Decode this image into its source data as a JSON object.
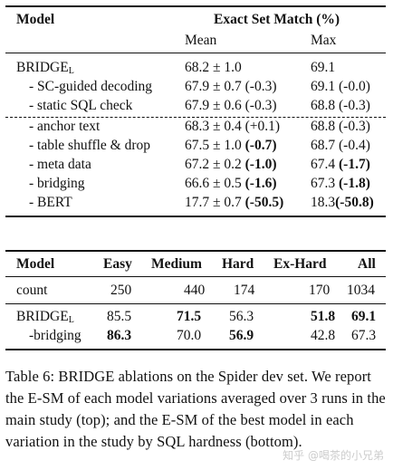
{
  "table1": {
    "header": {
      "model": "Model",
      "group": "Exact Set Match (%)",
      "mean": "Mean",
      "max": "Max"
    },
    "base": {
      "name": "BRIDGE",
      "subscript": "L",
      "mean": "68.2 ± 1.0",
      "max": "69.1"
    },
    "rows": [
      {
        "name": "- SC-guided decoding",
        "mean": "67.9 ± 0.7 (-0.3)",
        "max": "69.1 (-0.0)"
      },
      {
        "name": "- static SQL check",
        "mean": "67.9 ± 0.6 (-0.3)",
        "max": "68.8 (-0.3)"
      },
      {
        "name": "- anchor text",
        "mean": "68.3 ± 0.4 (+0.1)",
        "max": "68.8 (-0.3)"
      },
      {
        "name": "- table shuffle & drop",
        "mean_val": "67.5 ± 1.0 ",
        "mean_delta": "(-0.7)",
        "max_val": "68.7 (-0.4)",
        "max_delta": ""
      },
      {
        "name": "- meta data",
        "mean_val": "67.2 ± 0.2 ",
        "mean_delta": "(-1.0)",
        "max_val": "67.4 ",
        "max_delta": "(-1.7)"
      },
      {
        "name": "- bridging",
        "mean_val": "66.6 ± 0.5 ",
        "mean_delta": "(-1.6)",
        "max_val": "67.3 ",
        "max_delta": "(-1.8)"
      },
      {
        "name": "- BERT",
        "mean_val": "17.7 ± 0.7 ",
        "mean_delta": "(-50.5)",
        "max_val": "18.3",
        "max_delta": "(-50.8)"
      }
    ]
  },
  "table2": {
    "header": [
      "Model",
      "Easy",
      "Medium",
      "Hard",
      "Ex-Hard",
      "All"
    ],
    "count": [
      "count",
      "250",
      "440",
      "174",
      "170",
      "1034"
    ],
    "bridge": {
      "name": "BRIDGE",
      "subscript": "L",
      "easy": "85.5",
      "medium": "71.5",
      "hard": "56.3",
      "exhard": "51.8",
      "all": "69.1"
    },
    "bridging": {
      "name": "-bridging",
      "easy": "86.3",
      "medium": "70.0",
      "hard": "56.9",
      "exhard": "42.8",
      "all": "67.3"
    }
  },
  "caption": "Table 6: BRIDGE ablations on the Spider dev set. We report the E-SM of each model variations averaged over 3 runs in the main study (top); and the E-SM of the best model in each variation in the study by SQL hardness (bottom).",
  "watermark": "知乎 @喝茶的小兄弟"
}
